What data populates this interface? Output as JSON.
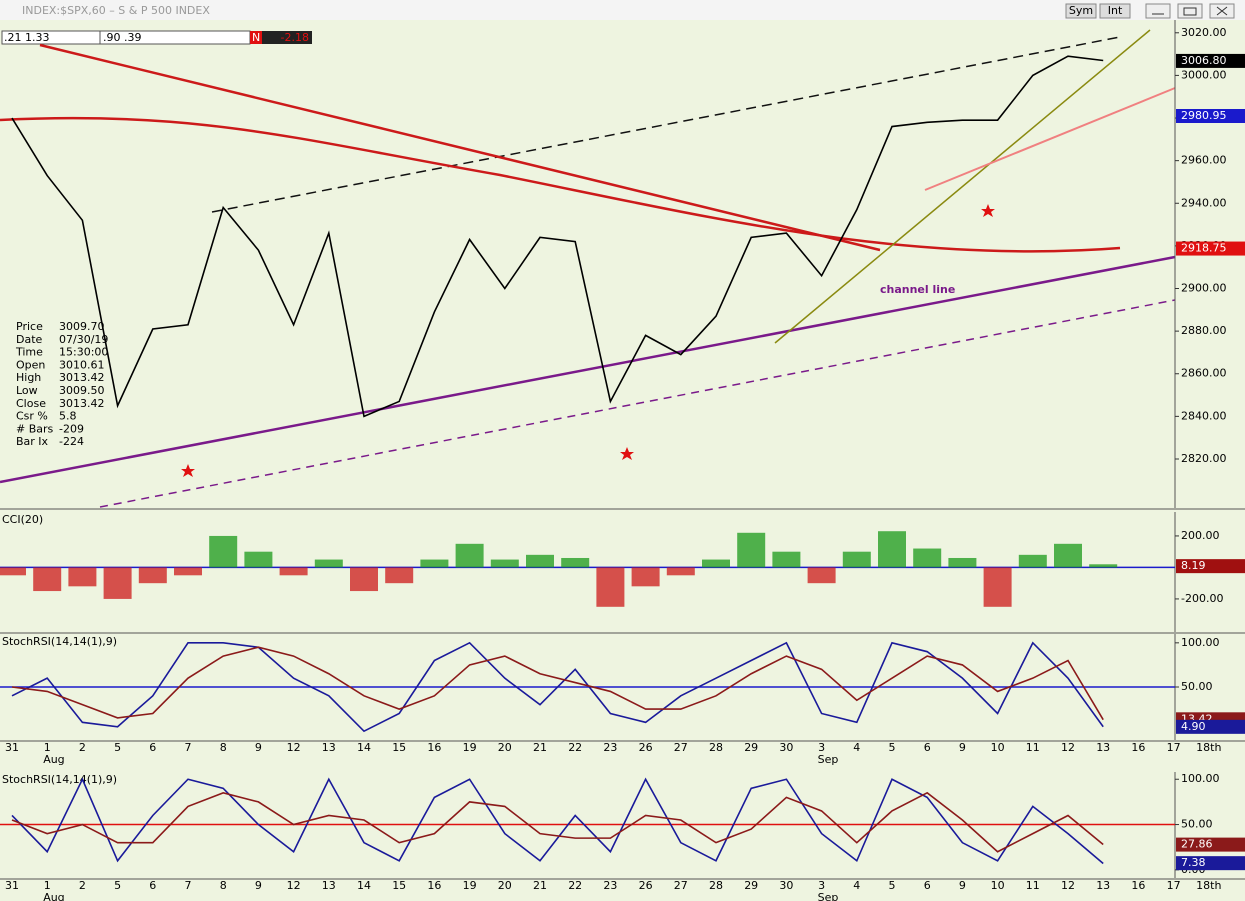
{
  "window": {
    "title": "INDEX:$SPX,60 – S & P 500 INDEX",
    "buttons": [
      "Sym",
      "Int"
    ],
    "header_fields": [
      ".21 1.33",
      ".90 .39",
      "N",
      "-2.18"
    ]
  },
  "info": [
    [
      "Price",
      "3009.70"
    ],
    [
      "Date",
      "07/30/19"
    ],
    [
      "Time",
      "15:30:00"
    ],
    [
      "Open",
      "3010.61"
    ],
    [
      "High",
      "3013.42"
    ],
    [
      "Low",
      "3009.50"
    ],
    [
      "Close",
      "3013.42"
    ],
    [
      "Csr %",
      "5.8"
    ],
    [
      "# Bars",
      "-209"
    ],
    [
      "Bar Ix",
      "-224"
    ]
  ],
  "chart_data": [
    {
      "type": "line",
      "annotation": "channel line",
      "categories": [
        "31",
        "1",
        "2",
        "5",
        "6",
        "7",
        "8",
        "9",
        "12",
        "13",
        "14",
        "15",
        "16",
        "19",
        "20",
        "21",
        "22",
        "23",
        "26",
        "27",
        "28",
        "29",
        "30",
        "3",
        "4",
        "5",
        "6",
        "9",
        "10",
        "11",
        "12",
        "13",
        "16",
        "17",
        "18th"
      ],
      "months": [
        null,
        "Aug",
        null,
        null,
        null,
        null,
        null,
        null,
        null,
        null,
        null,
        null,
        null,
        null,
        null,
        null,
        null,
        null,
        null,
        null,
        null,
        null,
        null,
        "Sep",
        null,
        null,
        null,
        null,
        null,
        null,
        null,
        null,
        null,
        null,
        null
      ],
      "series": [
        {
          "color": "#000000",
          "values": [
            2980,
            2953,
            2932,
            2845,
            2881,
            2883,
            2938,
            2918,
            2883,
            2926,
            2840,
            2847,
            2889,
            2923,
            2900,
            2924,
            2922,
            2847,
            2878,
            2869,
            2887,
            2924,
            2926,
            2906,
            2937,
            2976,
            2978,
            2979,
            2979,
            3000,
            3009,
            3007,
            null,
            null,
            null
          ]
        }
      ],
      "ylim": [
        2797,
        3026
      ],
      "yticks": [
        {
          "value": 2820,
          "label": "2820.00"
        },
        {
          "value": 2840,
          "label": "2840.00"
        },
        {
          "value": 2860,
          "label": "2860.00"
        },
        {
          "value": 2880,
          "label": "2880.00"
        },
        {
          "value": 2900,
          "label": "2900.00"
        },
        {
          "value": 2920,
          "label": "2920.00"
        },
        {
          "value": 2940,
          "label": "2940.00"
        },
        {
          "value": 2960,
          "label": "2960.00"
        },
        {
          "value": 2980,
          "label": "2980.00"
        },
        {
          "value": 3000,
          "label": "3000.00"
        },
        {
          "value": 3020,
          "label": "3020.00"
        }
      ],
      "price_tags": [
        {
          "value": 3006.8,
          "label": "3006.80",
          "color": "#000000"
        },
        {
          "value": 2980.95,
          "label": "2980.95",
          "color": "#1a1acc"
        },
        {
          "value": 2918.75,
          "label": "2918.75",
          "color": "#e01010"
        }
      ]
    },
    {
      "type": "bar",
      "title": "CCI(20)",
      "up_color": "#1a9a1a",
      "down_color": "#cc1a1a",
      "values": [
        -50,
        -150,
        -120,
        -200,
        -100,
        -50,
        200,
        100,
        -50,
        50,
        -150,
        -100,
        50,
        150,
        50,
        80,
        60,
        -250,
        -120,
        -50,
        50,
        220,
        100,
        -100,
        100,
        230,
        120,
        60,
        -250,
        80,
        150,
        20,
        null,
        null,
        null
      ],
      "ylim": [
        -410,
        352
      ],
      "yticks": [
        {
          "value": 200,
          "label": "200.00"
        },
        {
          "value": -200,
          "label": "-200.00"
        }
      ],
      "price_tags": [
        {
          "value": 8.19,
          "label": "8.19",
          "color": "#a01010"
        }
      ]
    },
    {
      "type": "line",
      "title": "StochRSI(14,14(1),9)",
      "hline": 50,
      "hline_color": "#1a1acc",
      "series": [
        {
          "color": "#1a1a9a",
          "values": [
            40,
            60,
            10,
            5,
            40,
            100,
            100,
            95,
            60,
            40,
            0,
            20,
            80,
            100,
            60,
            30,
            70,
            20,
            10,
            40,
            60,
            80,
            100,
            20,
            10,
            100,
            90,
            60,
            20,
            100,
            60,
            5,
            null,
            null,
            null
          ]
        },
        {
          "color": "#8b1a1a",
          "values": [
            50,
            45,
            30,
            15,
            20,
            60,
            85,
            95,
            85,
            65,
            40,
            25,
            40,
            75,
            85,
            65,
            55,
            45,
            25,
            25,
            40,
            65,
            85,
            70,
            35,
            60,
            85,
            75,
            45,
            60,
            80,
            13,
            null,
            null,
            null
          ]
        }
      ],
      "ylim": [
        -10,
        110
      ],
      "yticks": [
        {
          "value": 100,
          "label": "100.00"
        },
        {
          "value": 50,
          "label": "50.00"
        }
      ],
      "price_tags": [
        {
          "value": 13.42,
          "label": "13.42",
          "color": "#8b1a1a"
        },
        {
          "value": 4.9,
          "label": "4.90",
          "color": "#1a1a9a"
        }
      ]
    },
    {
      "type": "line",
      "title": "StochRSI(14,14(1),9)",
      "hline": 50,
      "hline_color": "#e01010",
      "series": [
        {
          "color": "#1a1a9a",
          "values": [
            60,
            20,
            100,
            10,
            60,
            100,
            90,
            50,
            20,
            100,
            30,
            10,
            80,
            100,
            40,
            10,
            60,
            20,
            100,
            30,
            10,
            90,
            100,
            40,
            10,
            100,
            80,
            30,
            10,
            70,
            40,
            7,
            null,
            null,
            null
          ]
        },
        {
          "color": "#8b1a1a",
          "values": [
            55,
            40,
            50,
            30,
            30,
            70,
            85,
            75,
            50,
            60,
            55,
            30,
            40,
            75,
            70,
            40,
            35,
            35,
            60,
            55,
            30,
            45,
            80,
            65,
            30,
            65,
            85,
            55,
            20,
            40,
            60,
            28,
            null,
            null,
            null
          ]
        }
      ],
      "ylim": [
        -9,
        108
      ],
      "yticks": [
        {
          "value": 100,
          "label": "100.00"
        },
        {
          "value": 50,
          "label": "50.00"
        },
        {
          "value": 0,
          "label": "0.00"
        }
      ],
      "price_tags": [
        {
          "value": 27.86,
          "label": "27.86",
          "color": "#8b1a1a"
        },
        {
          "value": 7.38,
          "label": "7.38",
          "color": "#1a1a9a"
        }
      ]
    }
  ]
}
